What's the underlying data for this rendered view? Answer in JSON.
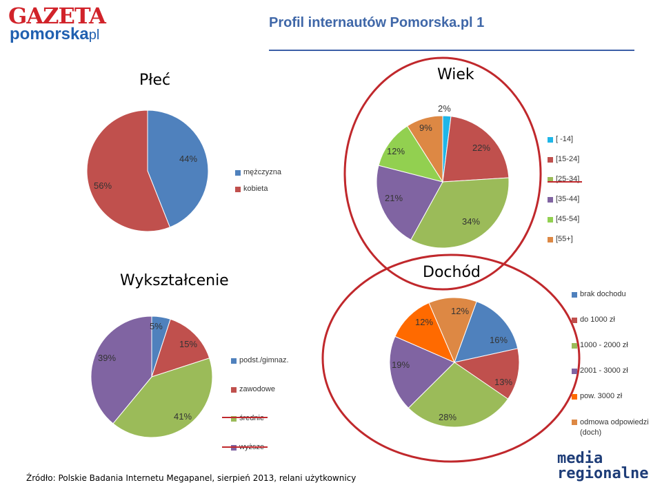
{
  "header": {
    "logo_gazeta": "GAZETA",
    "logo_pomorska": "pomorska",
    "logo_pl": "pl",
    "page_title": "Profil internautów Pomorska.pl 1"
  },
  "colors": {
    "accent_blue": "#3b5ea6",
    "annotation_red": "#c0282c"
  },
  "chart_data": [
    {
      "type": "pie",
      "title": "Płeć",
      "categories": [
        "mężczyzna",
        "kobieta"
      ],
      "values": [
        44,
        56
      ],
      "labels": [
        "44%",
        "56%"
      ],
      "colors": [
        "#4f81bd",
        "#c0504d"
      ],
      "legend_position": "right"
    },
    {
      "type": "pie",
      "title": "Wiek",
      "categories": [
        "[ -14]",
        "[15-24]",
        "[25-34]",
        "[35-44]",
        "[45-54]",
        "[55+]"
      ],
      "values": [
        2,
        22,
        34,
        21,
        12,
        9
      ],
      "labels": [
        "2%",
        "22%",
        "34%",
        "21%",
        "12%",
        "9%"
      ],
      "colors": [
        "#1fb6e8",
        "#c0504d",
        "#9bbb59",
        "#8064a2",
        "#92d050",
        "#dd8844"
      ],
      "legend_position": "right"
    },
    {
      "type": "pie",
      "title": "Wykształcenie",
      "categories": [
        "podst./gimnaz.",
        "zawodowe",
        "średnie",
        "wyższe"
      ],
      "values": [
        5,
        15,
        41,
        39
      ],
      "labels": [
        "5%",
        "15%",
        "41%",
        "39%"
      ],
      "colors": [
        "#4f81bd",
        "#c0504d",
        "#9bbb59",
        "#8064a2"
      ],
      "legend_position": "right"
    },
    {
      "type": "pie",
      "title": "Dochód",
      "categories": [
        "brak dochodu",
        "do 1000 zł",
        "1000 - 2000 zł",
        "2001 - 3000 zł",
        "pow. 3000 zł",
        "odmowa odpowiedzi (doch)"
      ],
      "values": [
        16,
        13,
        28,
        19,
        12,
        12
      ],
      "labels": [
        "16%",
        "13%",
        "28%",
        "19%",
        "12%",
        "12%"
      ],
      "colors": [
        "#4f81bd",
        "#c0504d",
        "#9bbb59",
        "#8064a2",
        "#ff6a00",
        "#dd8844"
      ],
      "legend_position": "right"
    }
  ],
  "footer": {
    "source": "Źródło: Polskie Badania Internetu Megapanel, sierpień 2013, relani użytkownicy",
    "logo_media_1": "media",
    "logo_media_2": "regionalne"
  }
}
